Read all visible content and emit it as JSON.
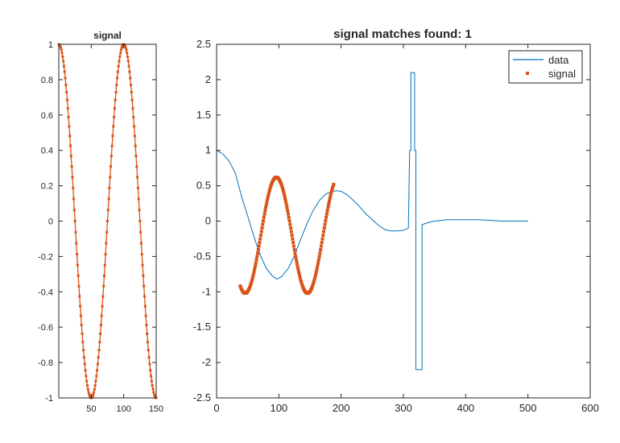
{
  "chart_data": [
    {
      "id": "left",
      "type": "scatter",
      "title": "signal",
      "xlim": [
        0,
        150
      ],
      "ylim": [
        -1,
        1
      ],
      "xticks": [
        50,
        100,
        150
      ],
      "yticks": [
        -1,
        -0.8,
        -0.6,
        -0.4,
        -0.2,
        0,
        0.2,
        0.4,
        0.6,
        0.8,
        1
      ],
      "grid": false,
      "series": [
        {
          "name": "signal",
          "style": "line+markers",
          "color": "#d95319",
          "x_range": [
            0,
            150
          ],
          "formula": "cos(2*pi*x/100)",
          "samples": 151
        }
      ]
    },
    {
      "id": "right",
      "type": "line",
      "title": "signal matches found: 1",
      "xlim": [
        0,
        600
      ],
      "ylim": [
        -2.5,
        2.5
      ],
      "xticks": [
        0,
        100,
        200,
        300,
        400,
        500,
        600
      ],
      "yticks": [
        -2.5,
        -2,
        -1.5,
        -1,
        -0.5,
        0,
        0.5,
        1,
        1.5,
        2,
        2.5
      ],
      "grid": false,
      "legend": {
        "placement": "top-right",
        "entries": [
          {
            "label": "data",
            "color": "#0072bd",
            "style": "line"
          },
          {
            "label": "signal",
            "color": "#d95319",
            "style": "marker"
          }
        ]
      },
      "series": [
        {
          "name": "data",
          "color": "#0072bd",
          "x": [
            0,
            10,
            20,
            30,
            40,
            50,
            60,
            70,
            80,
            90,
            97,
            105,
            115,
            125,
            135,
            145,
            155,
            165,
            175,
            185,
            193,
            200,
            210,
            220,
            230,
            240,
            250,
            260,
            270,
            280,
            290,
            300,
            308,
            310,
            312,
            312,
            318,
            318,
            320,
            320,
            324,
            324,
            330,
            330,
            340,
            350,
            360,
            370,
            380,
            390,
            400,
            420,
            440,
            460,
            480,
            500
          ],
          "y": [
            1.0,
            0.95,
            0.85,
            0.68,
            0.35,
            0.07,
            -0.22,
            -0.48,
            -0.67,
            -0.78,
            -0.82,
            -0.78,
            -0.67,
            -0.49,
            -0.26,
            -0.04,
            0.15,
            0.29,
            0.38,
            0.42,
            0.43,
            0.42,
            0.37,
            0.29,
            0.2,
            0.1,
            0.02,
            -0.06,
            -0.12,
            -0.14,
            -0.14,
            -0.13,
            -0.1,
            1.0,
            1.0,
            2.1,
            2.1,
            1.0,
            1.0,
            -2.1,
            -2.1,
            -2.1,
            -2.1,
            -0.05,
            -0.02,
            0.0,
            0.01,
            0.02,
            0.02,
            0.02,
            0.02,
            0.02,
            0.01,
            0.0,
            0.0,
            0.0
          ]
        },
        {
          "name": "signal",
          "color": "#d95319",
          "style": "markers",
          "x_range": [
            38,
            188
          ],
          "offset": 38,
          "amplitude": 0.82,
          "center": -0.2,
          "formula": "center + amplitude*cos(2*pi*(x-offset-58)/100)"
        }
      ]
    }
  ]
}
